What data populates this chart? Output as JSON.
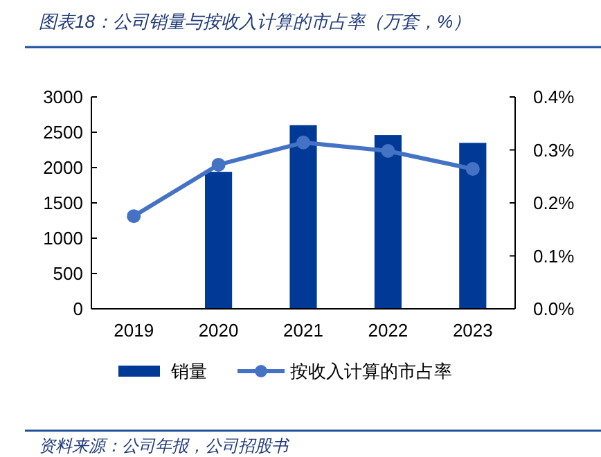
{
  "chart_data": {
    "type": "bar",
    "title": "图表18：公司销量与按收入计算的市占率（万套，%）",
    "categories": [
      "2019",
      "2020",
      "2021",
      "2022",
      "2023"
    ],
    "series": [
      {
        "name": "销量",
        "color": "#003a96",
        "values": [
          null,
          1940,
          2600,
          2460,
          2350
        ]
      },
      {
        "name": "按收入计算的市占率",
        "type": "line",
        "axis": "y2",
        "color": "#4472c4",
        "marker": "circle",
        "values": [
          0.175,
          0.272,
          0.314,
          0.298,
          0.264
        ]
      }
    ],
    "ylim": [
      0,
      3000
    ],
    "yticks": [
      0,
      500,
      1000,
      1500,
      2000,
      2500,
      3000
    ],
    "y2lim": [
      0,
      0.4
    ],
    "y2ticks": [
      {
        "value": 0,
        "label": "0.0%"
      },
      {
        "value": 0.1,
        "label": "0.1%"
      },
      {
        "value": 0.2,
        "label": "0.2%"
      },
      {
        "value": 0.3,
        "label": "0.3%"
      },
      {
        "value": 0.4,
        "label": "0.4%"
      }
    ],
    "legend": "bottom",
    "grid": false,
    "annotations": [
      "资料来源：公司年报，公司招股书"
    ]
  }
}
